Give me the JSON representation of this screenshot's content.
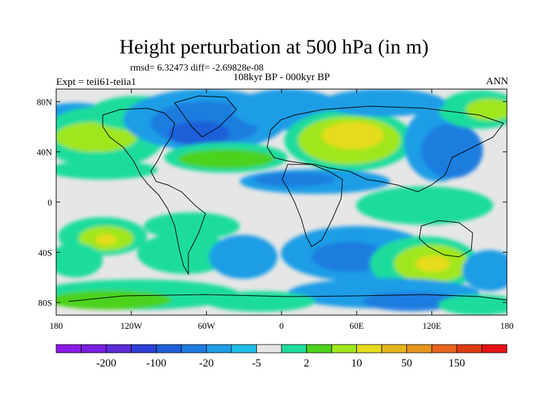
{
  "title": "Height perturbation at 500 hPa (in m)",
  "subtitle": "rmsd= 6.32473 diff= -2.69828e-08",
  "left_label": "Expt = teii61-teiia1",
  "center_label": "108kyr BP - 000kyr BP",
  "right_label": "ANN",
  "map": {
    "lon_ticks": [
      "180",
      "120W",
      "60W",
      "0",
      "60E",
      "120E",
      "180"
    ],
    "lat_ticks": [
      "80N",
      "40N",
      "0",
      "40S",
      "80S"
    ],
    "lon_range": [
      -180,
      180
    ],
    "lat_range": [
      -90,
      90
    ],
    "ocean_fill": "#e6e6e6"
  },
  "colorbar": {
    "colors": [
      "#8c1ae6",
      "#7a1ee0",
      "#5b2bd6",
      "#2f3fd6",
      "#1e5fd9",
      "#1e7ddf",
      "#1e9de6",
      "#22bce6",
      "#e6e6e6",
      "#1edc9c",
      "#4bd21a",
      "#a0e61e",
      "#e6dc1e",
      "#e6b41e",
      "#e6961e",
      "#e6641e",
      "#dc3c14",
      "#e61414"
    ],
    "labels": [
      {
        "text": "-200",
        "after": 1
      },
      {
        "text": "-100",
        "after": 3
      },
      {
        "text": "-20",
        "after": 5
      },
      {
        "text": "-5",
        "after": 7
      },
      {
        "text": "2",
        "after": 9
      },
      {
        "text": "10",
        "after": 11
      },
      {
        "text": "50",
        "after": 13
      },
      {
        "text": "150",
        "after": 15
      }
    ]
  }
}
